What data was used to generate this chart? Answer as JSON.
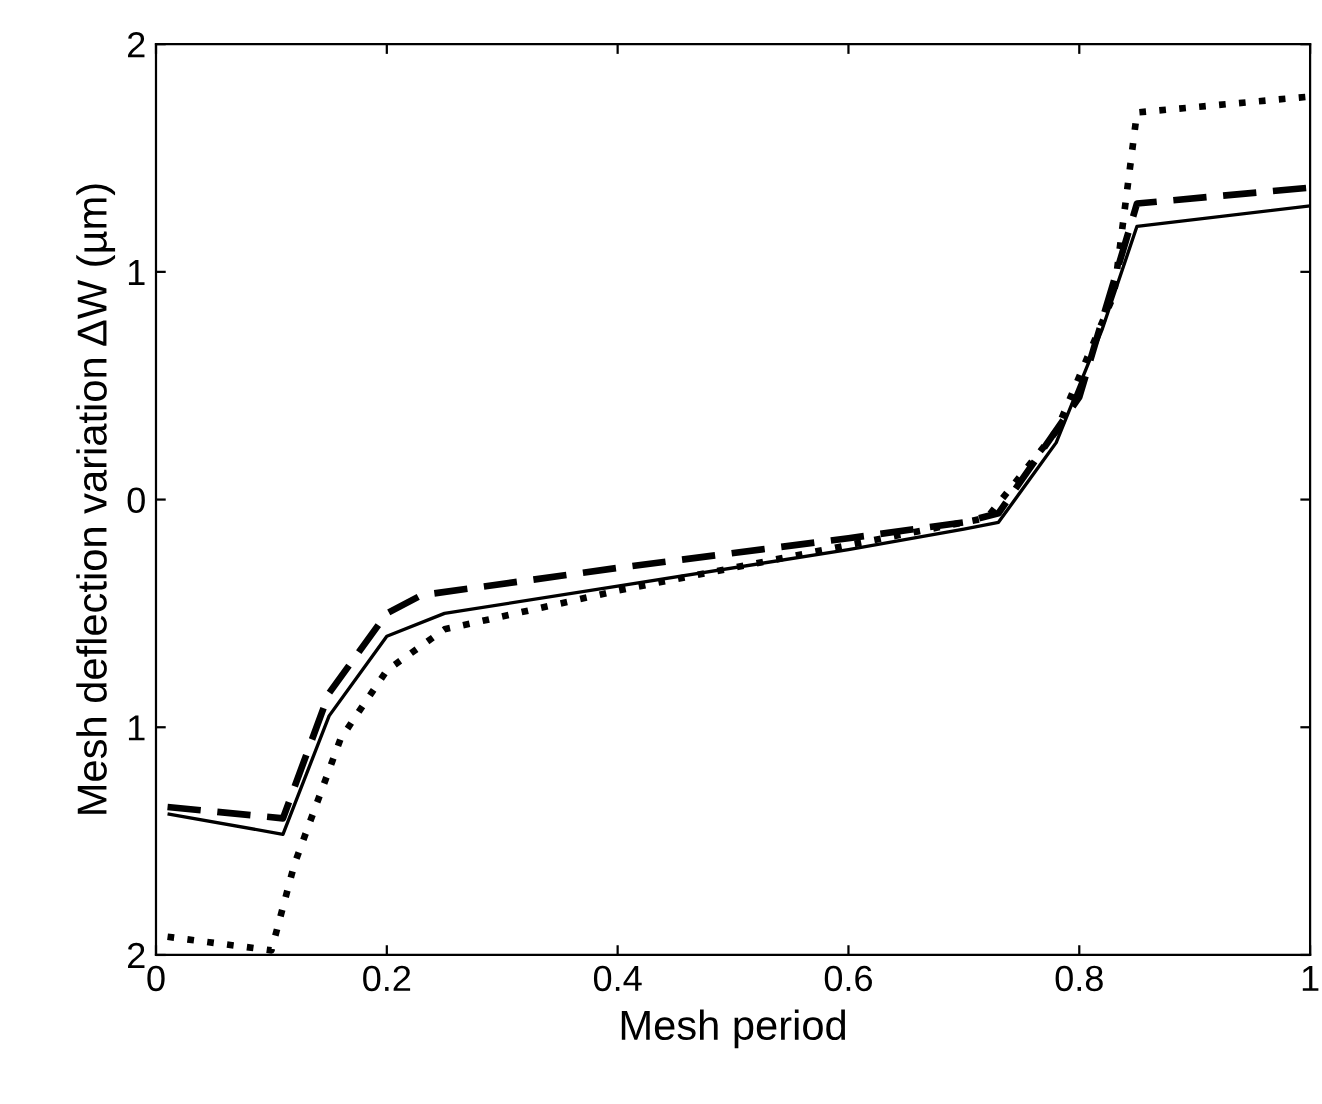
{
  "chart_data": {
    "type": "line",
    "xlabel": "Mesh period",
    "ylabel": "Mesh deflection variation ΔW (µm)",
    "xlim": [
      0,
      1
    ],
    "ylim": [
      -2,
      2
    ],
    "xticks": [
      0,
      0.2,
      0.4,
      0.6,
      0.8,
      1
    ],
    "yticks": [
      {
        "value": -2,
        "label": "2"
      },
      {
        "value": -1,
        "label": "1"
      },
      0,
      1,
      2
    ],
    "grid": false,
    "legend": false,
    "series": [
      {
        "color": "#000000",
        "line_style": "solid",
        "x": [
          0.01,
          0.11,
          0.15,
          0.2,
          0.25,
          0.4,
          0.6,
          0.7,
          0.73,
          0.78,
          0.82,
          0.85,
          1.0
        ],
        "values": [
          -1.38,
          -1.47,
          -0.95,
          -0.6,
          -0.5,
          -0.38,
          -0.22,
          -0.13,
          -0.1,
          0.25,
          0.75,
          1.2,
          1.29
        ]
      },
      {
        "color": "#000000",
        "line_style": "dashed",
        "x": [
          0.01,
          0.11,
          0.15,
          0.2,
          0.23,
          0.4,
          0.6,
          0.7,
          0.73,
          0.8,
          0.85,
          1.0
        ],
        "values": [
          -1.35,
          -1.4,
          -0.85,
          -0.5,
          -0.42,
          -0.3,
          -0.17,
          -0.1,
          -0.06,
          0.45,
          1.3,
          1.37
        ]
      },
      {
        "color": "#000000",
        "line_style": "dotted",
        "x": [
          0.01,
          0.1,
          0.12,
          0.16,
          0.2,
          0.25,
          0.4,
          0.6,
          0.72,
          0.78,
          0.83,
          0.85,
          1.0
        ],
        "values": [
          -1.92,
          -1.98,
          -1.6,
          -1.05,
          -0.75,
          -0.57,
          -0.4,
          -0.2,
          -0.08,
          0.3,
          0.9,
          1.7,
          1.77
        ]
      }
    ]
  }
}
